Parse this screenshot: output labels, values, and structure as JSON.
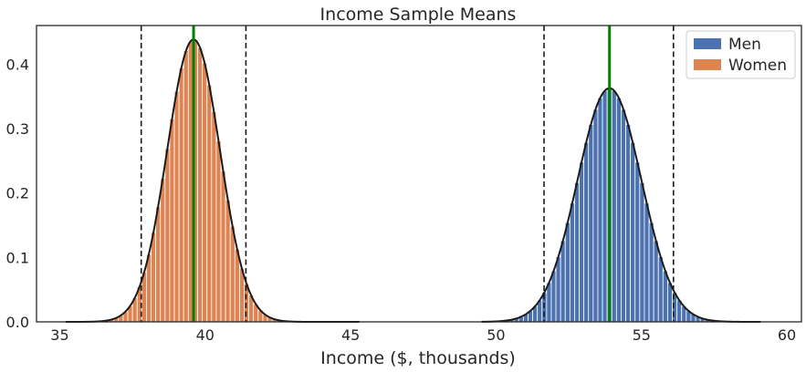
{
  "chart_data": {
    "type": "bar",
    "title": "Income Sample Means",
    "xlabel": "Income ($, thousands)",
    "ylabel": "",
    "xlim": [
      34.2,
      60.5
    ],
    "ylim": [
      0,
      0.46
    ],
    "xticks": [
      35,
      40,
      45,
      50,
      55,
      60
    ],
    "yticks": [
      0.0,
      0.1,
      0.2,
      0.3,
      0.4
    ],
    "xtick_labels": [
      "35",
      "40",
      "45",
      "50",
      "55",
      "60"
    ],
    "ytick_labels": [
      "0.0",
      "0.1",
      "0.2",
      "0.3",
      "0.4"
    ],
    "grid": false,
    "legend_position": "top-right",
    "series": [
      {
        "name": "Men",
        "color": "#4c72b0",
        "mean": 53.9,
        "std": 1.1,
        "bin_width": 0.16,
        "x_range": [
          50.3,
          57.5
        ],
        "ci_lines": [
          51.65,
          56.1
        ]
      },
      {
        "name": "Women",
        "color": "#dd8452",
        "mean": 39.6,
        "std": 0.91,
        "bin_width": 0.16,
        "x_range": [
          36.7,
          42.6
        ],
        "ci_lines": [
          37.8,
          41.4
        ]
      }
    ],
    "pdf_curves": [
      {
        "mean": 39.6,
        "std": 0.91,
        "x_range": [
          35.2,
          45.3
        ],
        "color": "#1a1a1a"
      },
      {
        "mean": 53.9,
        "std": 1.1,
        "x_range": [
          49.5,
          59.1
        ],
        "color": "#1a1a1a"
      }
    ],
    "mean_line_color": "#008000",
    "ci_line_color": "#1a1a1a"
  }
}
